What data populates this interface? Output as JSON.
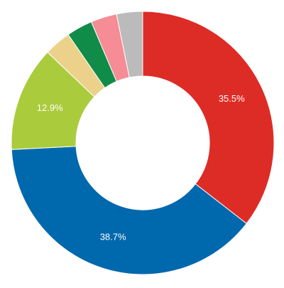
{
  "chart_data": {
    "type": "pie",
    "variant": "donut",
    "legend": "none",
    "title": "",
    "slices": [
      {
        "value": 35.5,
        "label": "35.5%",
        "color": "#dd2c26"
      },
      {
        "value": 38.7,
        "label": "38.7%",
        "color": "#0068ad"
      },
      {
        "value": 12.9,
        "label": "12.9%",
        "color": "#aacb3c"
      },
      {
        "value": 3.3,
        "label": "",
        "color": "#ecd18b"
      },
      {
        "value": 3.2,
        "label": "",
        "color": "#118b48"
      },
      {
        "value": 3.2,
        "label": "",
        "color": "#f58c96"
      },
      {
        "value": 3.2,
        "label": "",
        "color": "#bbbbbb"
      }
    ]
  }
}
